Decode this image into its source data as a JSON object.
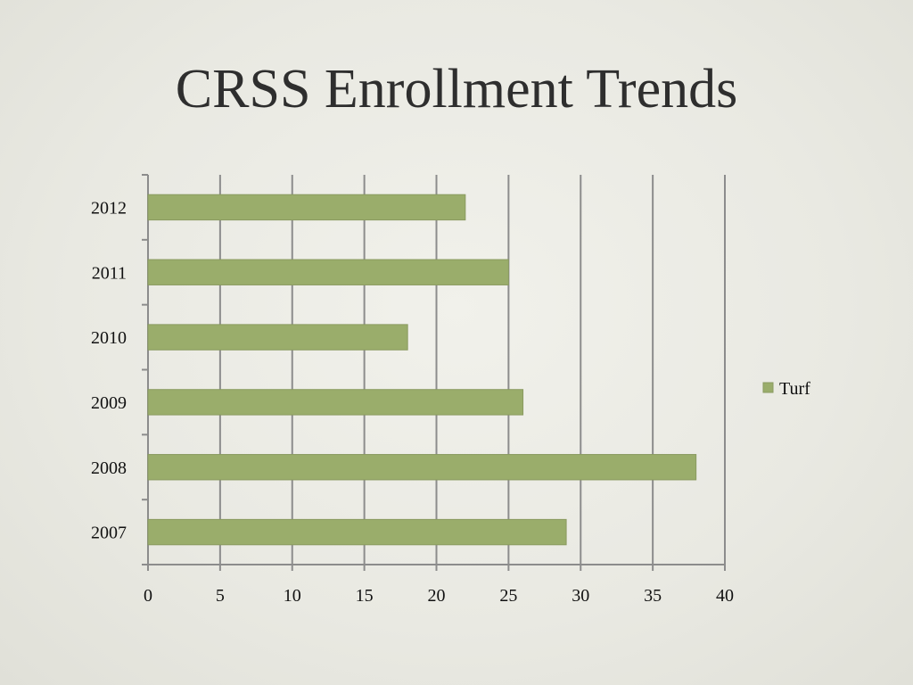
{
  "slide": {
    "title": "CRSS Enrollment Trends"
  },
  "chart_data": {
    "type": "bar",
    "orientation": "horizontal",
    "title": "",
    "xlabel": "",
    "ylabel": "",
    "categories": [
      "2007",
      "2008",
      "2009",
      "2010",
      "2011",
      "2012"
    ],
    "series": [
      {
        "name": "Turf",
        "values": [
          29,
          38,
          26,
          18,
          25,
          22
        ],
        "color": "#9aad6b"
      }
    ],
    "xlim": [
      0,
      40
    ],
    "x_ticks": [
      0,
      5,
      10,
      15,
      20,
      25,
      30,
      35,
      40
    ],
    "grid": "vertical",
    "legend_position": "right"
  }
}
